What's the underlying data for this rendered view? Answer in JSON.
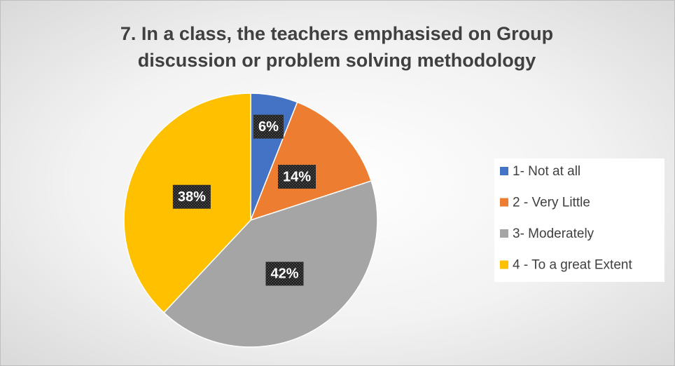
{
  "chart_data": {
    "type": "pie",
    "title": "7. In a class, the teachers emphasised on Group discussion or problem solving methodology",
    "categories": [
      "1- Not at all",
      "2 - Very Little",
      "3- Moderately",
      "4 - To a great Extent"
    ],
    "values": [
      6,
      14,
      42,
      38
    ],
    "value_labels": [
      "6%",
      "14%",
      "42%",
      "38%"
    ],
    "colors": [
      "#4472c4",
      "#ed7d31",
      "#a5a5a5",
      "#ffc000"
    ],
    "legend": "right"
  }
}
